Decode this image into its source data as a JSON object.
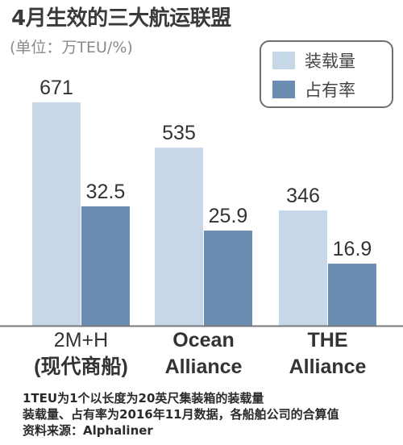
{
  "title": "4月生效的三大航运联盟",
  "unit_label": "(单位：万TEU/%)",
  "legend": [
    {
      "label": "装载量",
      "color": "#c7d7e8"
    },
    {
      "label": "占有率",
      "color": "#6b8db1"
    }
  ],
  "footer": [
    "1TEU为1个以长度为20英尺集装箱的装载量",
    "装载量、占有率为2016年11月数据，各船舶公司的合算值",
    "资料来源：Alphaliner"
  ],
  "chart_data": {
    "type": "bar",
    "categories": [
      [
        "2M+H",
        "(现代商船)"
      ],
      [
        "Ocean",
        "Alliance"
      ],
      [
        "THE",
        "Alliance"
      ]
    ],
    "series": [
      {
        "name": "装载量",
        "values": [
          671,
          535,
          346
        ],
        "labels": [
          "671",
          "535",
          "346"
        ],
        "color": "#c7d7e8"
      },
      {
        "name": "占有率",
        "values": [
          32.5,
          25.9,
          16.9
        ],
        "labels": [
          "32.5",
          "25.9",
          "16.9"
        ],
        "color": "#6b8db1"
      }
    ],
    "grid": false
  }
}
